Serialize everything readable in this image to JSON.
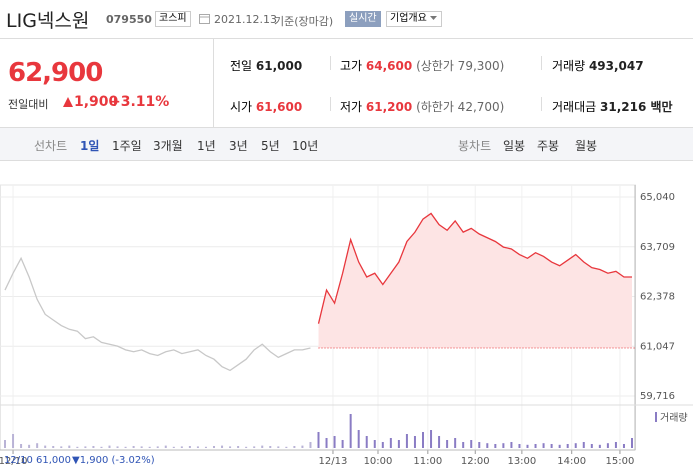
{
  "header": {
    "name": "LIG넥스원",
    "code": "079550",
    "market": "코스피",
    "date": "2021.12.13",
    "basis": "기준(장마감)",
    "realtime": "실시간",
    "company": "기업개요",
    "price": "62,900",
    "change_label": "전일대비",
    "change": "1,900",
    "change_pct": "+3.11%"
  },
  "stats": [
    {
      "label": "전일",
      "value": "61,000"
    },
    {
      "label": "고가",
      "value": "64,600",
      "sub": "(상한가 79,300)"
    },
    {
      "label": "거래량",
      "value": "493,047"
    },
    {
      "label": "시가",
      "value": "61,600"
    },
    {
      "label": "저가",
      "value": "61,200",
      "sub": "(하한가 42,700)"
    },
    {
      "label": "거래대금",
      "value": "31,216 백만"
    }
  ],
  "tabs": {
    "line_label": "선차트",
    "line": [
      "1일",
      "1주일",
      "3개월",
      "1년",
      "3년",
      "5년",
      "10년"
    ],
    "candle_label": "봉차트",
    "candle": [
      "일봉",
      "주봉",
      "월봉"
    ]
  },
  "footer": {
    "prev": "12/10 61,000",
    "change": "▼1,900 (-3.02%)"
  },
  "chart_data": [
    {
      "type": "line",
      "xlim": [
        0,
        78
      ],
      "ylim": [
        59716,
        65040
      ],
      "yticks": [
        {
          "value": 65040,
          "label": "65,040"
        },
        {
          "value": 63709,
          "label": "63,709"
        },
        {
          "value": 62378,
          "label": "62,378"
        },
        {
          "value": 61047,
          "label": "61,047"
        },
        {
          "value": 59716,
          "label": "59,716"
        }
      ],
      "xticks": [
        {
          "value": 1,
          "label": "12/10"
        },
        {
          "value": 40.8,
          "label": "12/13"
        },
        {
          "value": 46.4,
          "label": "10:00"
        },
        {
          "value": 52.6,
          "label": "11:00"
        },
        {
          "value": 58.5,
          "label": "12:00"
        },
        {
          "value": 64.3,
          "label": "13:00"
        },
        {
          "value": 70.5,
          "label": "14:00"
        },
        {
          "value": 76.5,
          "label": "15:00"
        }
      ],
      "reference_line": 61000,
      "grid": true,
      "series": [
        {
          "color": "#c8c8c8",
          "x": [
            0,
            1,
            2,
            3,
            4,
            5,
            6,
            7,
            8,
            9,
            10,
            11,
            12,
            13,
            14,
            15,
            16,
            17,
            18,
            19,
            20,
            21,
            22,
            23,
            24,
            25,
            26,
            27,
            28,
            29,
            30,
            31,
            32,
            33,
            34,
            35,
            36,
            37,
            38
          ],
          "values": [
            62550,
            63000,
            63400,
            62900,
            62300,
            61900,
            61750,
            61600,
            61500,
            61450,
            61250,
            61300,
            61150,
            61100,
            61050,
            60950,
            60900,
            60950,
            60850,
            60800,
            60900,
            60950,
            60850,
            60900,
            60950,
            60800,
            60700,
            60500,
            60400,
            60550,
            60700,
            60950,
            61100,
            60900,
            60750,
            60850,
            60950,
            60950,
            61000
          ]
        },
        {
          "color": "#e8373d",
          "fill": "#fde4e4",
          "x": [
            39,
            40,
            41,
            42,
            43,
            44,
            45,
            46,
            47,
            48,
            49,
            50,
            51,
            52,
            53,
            54,
            55,
            56,
            57,
            58,
            59,
            60,
            61,
            62,
            63,
            64,
            65,
            66,
            67,
            68,
            69,
            70,
            71,
            72,
            73,
            74,
            75,
            76,
            77,
            78
          ],
          "values": [
            61650,
            62550,
            62200,
            63000,
            63900,
            63300,
            62900,
            63000,
            62700,
            63000,
            63300,
            63850,
            64100,
            64450,
            64600,
            64300,
            64150,
            64400,
            64100,
            64200,
            64050,
            63950,
            63850,
            63700,
            63650,
            63500,
            63400,
            63550,
            63450,
            63300,
            63200,
            63350,
            63500,
            63300,
            63150,
            63100,
            63000,
            63050,
            62900,
            62900
          ]
        }
      ]
    },
    {
      "type": "bar",
      "xlim": [
        0,
        78
      ],
      "ylim": [
        0,
        100
      ],
      "series": [
        {
          "color": "#b9b3d6",
          "x": [
            0,
            1,
            2,
            3,
            4,
            5,
            6,
            7,
            8,
            9,
            10,
            11,
            12,
            13,
            14,
            15,
            16,
            17,
            18,
            19,
            20,
            21,
            22,
            23,
            24,
            25,
            26,
            27,
            28,
            29,
            30,
            31,
            32,
            33,
            34,
            35,
            36,
            37,
            38
          ],
          "values": [
            20,
            35,
            10,
            8,
            12,
            6,
            5,
            4,
            6,
            3,
            4,
            5,
            3,
            6,
            4,
            3,
            5,
            4,
            3,
            4,
            6,
            3,
            4,
            5,
            4,
            3,
            5,
            6,
            4,
            5,
            3,
            4,
            6,
            5,
            4,
            3,
            5,
            6,
            15
          ]
        },
        {
          "name": "거래량",
          "color": "#8a7cc4",
          "x": [
            39,
            40,
            41,
            42,
            43,
            44,
            45,
            46,
            47,
            48,
            49,
            50,
            51,
            52,
            53,
            54,
            55,
            56,
            57,
            58,
            59,
            60,
            61,
            62,
            63,
            64,
            65,
            66,
            67,
            68,
            69,
            70,
            71,
            72,
            73,
            74,
            75,
            76,
            77,
            78
          ],
          "values": [
            40,
            25,
            30,
            20,
            85,
            45,
            30,
            20,
            15,
            25,
            20,
            35,
            30,
            40,
            45,
            30,
            20,
            25,
            15,
            20,
            15,
            12,
            10,
            12,
            15,
            10,
            8,
            10,
            12,
            10,
            8,
            10,
            12,
            15,
            10,
            8,
            12,
            15,
            10,
            25
          ]
        }
      ]
    }
  ]
}
